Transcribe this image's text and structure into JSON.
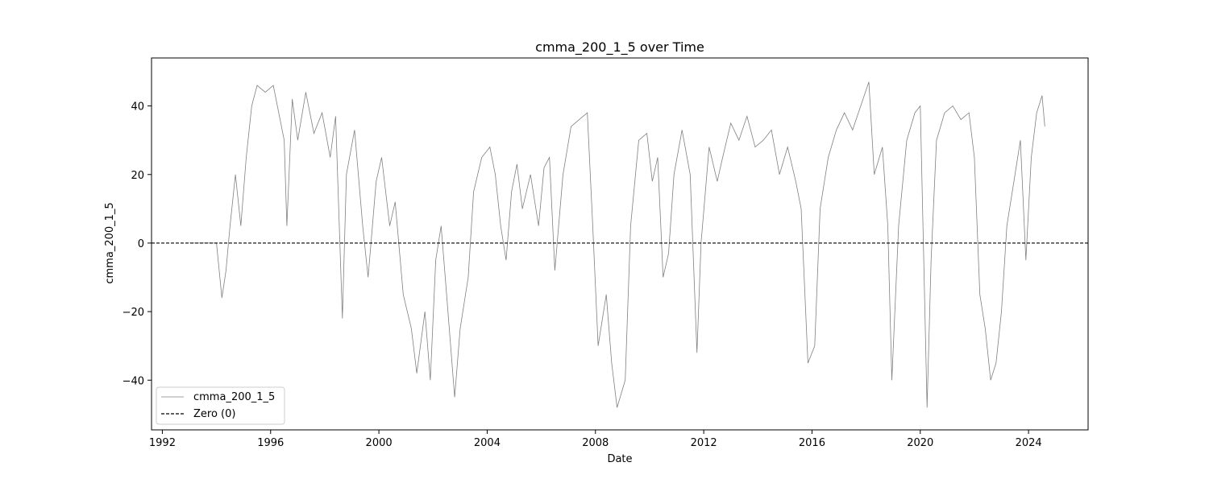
{
  "chart_data": {
    "type": "line",
    "title": "cmma_200_1_5 over Time",
    "xlabel": "Date",
    "ylabel": "cmma_200_1_5",
    "xlim": [
      1991.6,
      2026.2
    ],
    "ylim": [
      -54.5,
      54
    ],
    "x_ticks": [
      1992,
      1996,
      2000,
      2004,
      2008,
      2012,
      2016,
      2020,
      2024
    ],
    "x_tick_labels": [
      "1992",
      "1996",
      "2000",
      "2004",
      "2008",
      "2012",
      "2016",
      "2020",
      "2024"
    ],
    "y_ticks": [
      -40,
      -20,
      0,
      20,
      40
    ],
    "y_tick_labels": [
      "−40",
      "−20",
      "0",
      "20",
      "40"
    ],
    "grid": false,
    "legend_position": "lower-left",
    "legend": [
      "cmma_200_1_5",
      "Zero (0)"
    ],
    "series": [
      {
        "name": "cmma_200_1_5",
        "color": "#808080",
        "points": [
          [
            1993.0,
            0
          ],
          [
            1994.0,
            0
          ],
          [
            1994.2,
            -16
          ],
          [
            1994.35,
            -8
          ],
          [
            1994.5,
            5
          ],
          [
            1994.7,
            20
          ],
          [
            1994.9,
            5
          ],
          [
            1995.1,
            25
          ],
          [
            1995.3,
            40
          ],
          [
            1995.5,
            46
          ],
          [
            1995.8,
            44
          ],
          [
            1996.1,
            46
          ],
          [
            1996.3,
            38
          ],
          [
            1996.5,
            30
          ],
          [
            1996.6,
            5
          ],
          [
            1996.8,
            42
          ],
          [
            1997.0,
            30
          ],
          [
            1997.3,
            44
          ],
          [
            1997.6,
            32
          ],
          [
            1997.9,
            38
          ],
          [
            1998.2,
            25
          ],
          [
            1998.4,
            37
          ],
          [
            1998.65,
            -22
          ],
          [
            1998.8,
            20
          ],
          [
            1999.1,
            33
          ],
          [
            1999.4,
            5
          ],
          [
            1999.6,
            -10
          ],
          [
            1999.9,
            18
          ],
          [
            2000.1,
            25
          ],
          [
            2000.4,
            5
          ],
          [
            2000.6,
            12
          ],
          [
            2000.9,
            -15
          ],
          [
            2001.2,
            -25
          ],
          [
            2001.4,
            -38
          ],
          [
            2001.7,
            -20
          ],
          [
            2001.9,
            -40
          ],
          [
            2002.1,
            -5
          ],
          [
            2002.3,
            5
          ],
          [
            2002.5,
            -15
          ],
          [
            2002.8,
            -45
          ],
          [
            2003.0,
            -25
          ],
          [
            2003.3,
            -10
          ],
          [
            2003.5,
            15
          ],
          [
            2003.8,
            25
          ],
          [
            2004.1,
            28
          ],
          [
            2004.3,
            20
          ],
          [
            2004.5,
            5
          ],
          [
            2004.7,
            -5
          ],
          [
            2004.9,
            15
          ],
          [
            2005.1,
            23
          ],
          [
            2005.3,
            10
          ],
          [
            2005.6,
            20
          ],
          [
            2005.9,
            5
          ],
          [
            2006.1,
            22
          ],
          [
            2006.3,
            25
          ],
          [
            2006.5,
            -8
          ],
          [
            2006.8,
            20
          ],
          [
            2007.1,
            34
          ],
          [
            2007.4,
            36
          ],
          [
            2007.7,
            38
          ],
          [
            2007.9,
            5
          ],
          [
            2008.1,
            -30
          ],
          [
            2008.4,
            -15
          ],
          [
            2008.6,
            -35
          ],
          [
            2008.8,
            -48
          ],
          [
            2009.1,
            -40
          ],
          [
            2009.3,
            5
          ],
          [
            2009.6,
            30
          ],
          [
            2009.9,
            32
          ],
          [
            2010.1,
            18
          ],
          [
            2010.3,
            25
          ],
          [
            2010.5,
            -10
          ],
          [
            2010.7,
            -3
          ],
          [
            2010.9,
            20
          ],
          [
            2011.2,
            33
          ],
          [
            2011.5,
            20
          ],
          [
            2011.75,
            -32
          ],
          [
            2011.9,
            0
          ],
          [
            2012.2,
            28
          ],
          [
            2012.5,
            18
          ],
          [
            2012.7,
            25
          ],
          [
            2013.0,
            35
          ],
          [
            2013.3,
            30
          ],
          [
            2013.6,
            37
          ],
          [
            2013.9,
            28
          ],
          [
            2014.2,
            30
          ],
          [
            2014.5,
            33
          ],
          [
            2014.8,
            20
          ],
          [
            2015.1,
            28
          ],
          [
            2015.4,
            18
          ],
          [
            2015.6,
            10
          ],
          [
            2015.85,
            -35
          ],
          [
            2016.1,
            -30
          ],
          [
            2016.3,
            10
          ],
          [
            2016.6,
            25
          ],
          [
            2016.9,
            33
          ],
          [
            2017.2,
            38
          ],
          [
            2017.5,
            33
          ],
          [
            2017.8,
            40
          ],
          [
            2018.1,
            47
          ],
          [
            2018.3,
            20
          ],
          [
            2018.6,
            28
          ],
          [
            2018.8,
            5
          ],
          [
            2018.95,
            -40
          ],
          [
            2019.2,
            5
          ],
          [
            2019.5,
            30
          ],
          [
            2019.8,
            38
          ],
          [
            2020.0,
            40
          ],
          [
            2020.25,
            -48
          ],
          [
            2020.4,
            -5
          ],
          [
            2020.6,
            30
          ],
          [
            2020.9,
            38
          ],
          [
            2021.2,
            40
          ],
          [
            2021.5,
            36
          ],
          [
            2021.8,
            38
          ],
          [
            2022.0,
            25
          ],
          [
            2022.2,
            -15
          ],
          [
            2022.4,
            -25
          ],
          [
            2022.6,
            -40
          ],
          [
            2022.8,
            -35
          ],
          [
            2023.0,
            -20
          ],
          [
            2023.2,
            5
          ],
          [
            2023.5,
            20
          ],
          [
            2023.7,
            30
          ],
          [
            2023.9,
            -5
          ],
          [
            2024.1,
            25
          ],
          [
            2024.3,
            38
          ],
          [
            2024.5,
            43
          ],
          [
            2024.6,
            34
          ]
        ]
      },
      {
        "name": "Zero (0)",
        "color": "#000000",
        "style": "dashed",
        "value": 0
      }
    ]
  }
}
